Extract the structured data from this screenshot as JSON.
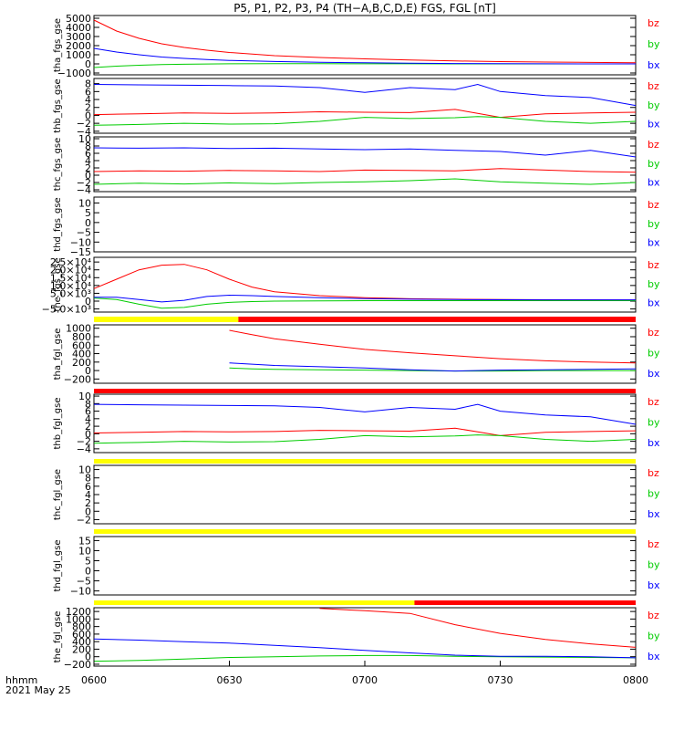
{
  "title": "P5,  P1,  P2,  P3,  P4  (TH−A,B,C,D,E)  FGS,  FGL  [nT]",
  "footer": {
    "unit_label": "hhmm",
    "date_label": "2021 May 25"
  },
  "colors": {
    "bz": "#ff0000",
    "by": "#00cc00",
    "bx": "#0000ff",
    "flag_yellow": "#ffff00",
    "flag_red": "#ff0000",
    "frame": "#000000"
  },
  "chart_data": [
    {
      "type": "line",
      "ylabel": "tha_fgs_gse",
      "yticks": [
        "5000",
        "4000",
        "3000",
        "2000",
        "1000",
        "0",
        "−1000"
      ],
      "ylim": [
        -1200,
        5300
      ],
      "legend": [
        "bz",
        "by",
        "bx"
      ],
      "x": [
        "0600",
        "0605",
        "0610",
        "0615",
        "0620",
        "0625",
        "0630",
        "0640",
        "0650",
        "0700",
        "0710",
        "0720",
        "0730",
        "0740",
        "0750",
        "0800"
      ],
      "series": [
        {
          "name": "bz",
          "values": [
            4800,
            3600,
            2800,
            2200,
            1800,
            1500,
            1250,
            900,
            700,
            550,
            420,
            320,
            250,
            200,
            160,
            120
          ]
        },
        {
          "name": "by",
          "values": [
            -400,
            -250,
            -150,
            -80,
            -40,
            -10,
            10,
            20,
            20,
            10,
            10,
            0,
            0,
            0,
            0,
            0
          ]
        },
        {
          "name": "bx",
          "values": [
            1700,
            1300,
            1000,
            750,
            600,
            480,
            380,
            260,
            180,
            120,
            80,
            40,
            20,
            10,
            0,
            0
          ]
        }
      ]
    },
    {
      "type": "line",
      "ylabel": "thb_fgs_gse",
      "yticks": [
        "8",
        "6",
        "4",
        "2",
        "0",
        "−2",
        "−4"
      ],
      "ylim": [
        -4.5,
        9.3
      ],
      "legend": [
        "bz",
        "by",
        "bx"
      ],
      "x": [
        "0600",
        "0610",
        "0620",
        "0630",
        "0640",
        "0650",
        "0700",
        "0710",
        "0720",
        "0725",
        "0730",
        "0740",
        "0750",
        "0800"
      ],
      "series": [
        {
          "name": "bz",
          "values": [
            0.2,
            0.4,
            0.6,
            0.5,
            0.6,
            0.9,
            0.8,
            0.7,
            1.5,
            0.5,
            -0.5,
            0.4,
            0.6,
            0.8
          ]
        },
        {
          "name": "by",
          "values": [
            -2.5,
            -2.3,
            -2.0,
            -2.2,
            -2.1,
            -1.5,
            -0.5,
            -0.8,
            -0.6,
            -0.3,
            -0.5,
            -1.5,
            -2.0,
            -1.5
          ]
        },
        {
          "name": "bx",
          "values": [
            7.8,
            7.7,
            7.6,
            7.5,
            7.4,
            7.0,
            5.8,
            7.0,
            6.5,
            7.8,
            6.0,
            5.0,
            4.5,
            2.5
          ]
        }
      ]
    },
    {
      "type": "line",
      "ylabel": "thc_fgs_gse",
      "yticks": [
        "10",
        "8",
        "6",
        "4",
        "2",
        "0",
        "−2",
        "−4"
      ],
      "ylim": [
        -4.5,
        10.5
      ],
      "legend": [
        "bz",
        "by",
        "bx"
      ],
      "x": [
        "0600",
        "0610",
        "0620",
        "0630",
        "0640",
        "0650",
        "0700",
        "0710",
        "0720",
        "0730",
        "0740",
        "0750",
        "0800"
      ],
      "series": [
        {
          "name": "bz",
          "values": [
            1.0,
            1.2,
            1.1,
            1.3,
            1.2,
            1.0,
            1.4,
            1.3,
            1.2,
            1.8,
            1.4,
            1.0,
            0.8
          ]
        },
        {
          "name": "by",
          "values": [
            -2.5,
            -2.2,
            -2.4,
            -2.1,
            -2.3,
            -2.0,
            -1.8,
            -1.5,
            -1.0,
            -1.8,
            -2.2,
            -2.5,
            -2.0
          ]
        },
        {
          "name": "bx",
          "values": [
            7.5,
            7.4,
            7.5,
            7.3,
            7.4,
            7.2,
            7.0,
            7.2,
            6.8,
            6.5,
            5.5,
            6.8,
            5.0
          ]
        }
      ]
    },
    {
      "type": "line",
      "ylabel": "thd_fgs_gse",
      "yticks": [
        "10",
        "5",
        "0",
        "−5",
        "−10",
        "−15"
      ],
      "ylim": [
        -15,
        13
      ],
      "legend": [
        "bz",
        "by",
        "bx"
      ],
      "series": []
    },
    {
      "type": "line",
      "ylabel": "the_fgs_gse",
      "yticks": [
        "2.5×10⁴",
        "2.0×10⁴",
        "1.5×10⁴",
        "1.0×10⁴",
        "5.0×10³",
        "0",
        "−5.0×10³"
      ],
      "ylim": [
        -7000,
        28000
      ],
      "legend": [
        "bz",
        "by",
        "bx"
      ],
      "x": [
        "0600",
        "0605",
        "0610",
        "0615",
        "0620",
        "0625",
        "0630",
        "0635",
        "0640",
        "0650",
        "0700",
        "0710",
        "0720",
        "0730",
        "0740",
        "0750",
        "0800"
      ],
      "series": [
        {
          "name": "bz",
          "values": [
            8000,
            14000,
            20000,
            23000,
            23500,
            20000,
            14000,
            9000,
            6000,
            3500,
            2200,
            1500,
            1200,
            1000,
            900,
            800,
            700
          ]
        },
        {
          "name": "by",
          "values": [
            2000,
            1000,
            -2000,
            -4500,
            -4000,
            -2000,
            -800,
            -300,
            0,
            200,
            300,
            300,
            300,
            300,
            300,
            300,
            300
          ]
        },
        {
          "name": "bx",
          "values": [
            2500,
            2500,
            1000,
            -500,
            500,
            3000,
            3800,
            3500,
            3000,
            2200,
            1600,
            1200,
            1000,
            900,
            800,
            800,
            800
          ]
        }
      ]
    },
    {
      "type": "line",
      "ylabel": "tha_fgl_gse",
      "yticks": [
        "1000",
        "800",
        "600",
        "400",
        "200",
        "0",
        "−200"
      ],
      "ylim": [
        -300,
        1080
      ],
      "legend": [
        "bz",
        "by",
        "bx"
      ],
      "x": [
        "0630",
        "0635",
        "0640",
        "0650",
        "0700",
        "0710",
        "0720",
        "0730",
        "0740",
        "0750",
        "0800"
      ],
      "series": [
        {
          "name": "bz",
          "values": [
            950,
            850,
            750,
            620,
            500,
            420,
            350,
            280,
            230,
            200,
            180
          ]
        },
        {
          "name": "by",
          "values": [
            60,
            40,
            30,
            20,
            10,
            0,
            -10,
            -10,
            0,
            0,
            0
          ]
        },
        {
          "name": "bx",
          "values": [
            180,
            150,
            120,
            90,
            60,
            20,
            -10,
            10,
            20,
            30,
            40
          ]
        }
      ]
    },
    {
      "type": "line",
      "ylabel": "thb_fgl_gse",
      "yticks": [
        "10",
        "8",
        "6",
        "4",
        "2",
        "0",
        "−2",
        "−4"
      ],
      "ylim": [
        -5,
        10.5
      ],
      "legend": [
        "bz",
        "by",
        "bx"
      ],
      "x": [
        "0600",
        "0610",
        "0620",
        "0630",
        "0640",
        "0650",
        "0700",
        "0710",
        "0720",
        "0725",
        "0730",
        "0740",
        "0750",
        "0800"
      ],
      "series": [
        {
          "name": "bz",
          "values": [
            0.2,
            0.4,
            0.6,
            0.5,
            0.6,
            0.9,
            0.8,
            0.7,
            1.5,
            0.5,
            -0.5,
            0.4,
            0.6,
            0.8
          ]
        },
        {
          "name": "by",
          "values": [
            -2.5,
            -2.3,
            -2.0,
            -2.2,
            -2.1,
            -1.5,
            -0.5,
            -0.8,
            -0.6,
            -0.3,
            -0.5,
            -1.5,
            -2.0,
            -1.5
          ]
        },
        {
          "name": "bx",
          "values": [
            7.8,
            7.7,
            7.6,
            7.5,
            7.4,
            7.0,
            5.8,
            7.0,
            6.5,
            7.8,
            6.0,
            5.0,
            4.5,
            2.5
          ]
        }
      ]
    },
    {
      "type": "line",
      "ylabel": "thc_fgl_gse",
      "yticks": [
        "10",
        "8",
        "6",
        "4",
        "2",
        "0",
        "−2"
      ],
      "ylim": [
        -3,
        11
      ],
      "legend": [
        "bz",
        "by",
        "bx"
      ],
      "series": []
    },
    {
      "type": "line",
      "ylabel": "thd_fgl_gse",
      "yticks": [
        "15",
        "10",
        "5",
        "0",
        "−5",
        "−10"
      ],
      "ylim": [
        -12,
        17
      ],
      "legend": [
        "bz",
        "by",
        "bx"
      ],
      "series": []
    },
    {
      "type": "line",
      "ylabel": "the_fgl_gse",
      "yticks": [
        "1200",
        "1000",
        "800",
        "600",
        "400",
        "200",
        "0",
        "−200"
      ],
      "ylim": [
        -250,
        1300
      ],
      "legend": [
        "bz",
        "by",
        "bx"
      ],
      "x": [
        "0600",
        "0610",
        "0620",
        "0630",
        "0640",
        "0650",
        "0700",
        "0710",
        "0720",
        "0730",
        "0740",
        "0750",
        "0800"
      ],
      "series": [
        {
          "name": "bz",
          "values": [
            null,
            null,
            null,
            null,
            null,
            1280,
            1220,
            1150,
            850,
            620,
            460,
            340,
            250
          ]
        },
        {
          "name": "by",
          "values": [
            -120,
            -100,
            -60,
            -20,
            0,
            20,
            30,
            30,
            10,
            0,
            -10,
            -20,
            -30
          ]
        },
        {
          "name": "bx",
          "values": [
            470,
            440,
            400,
            360,
            300,
            240,
            170,
            100,
            40,
            10,
            10,
            0,
            -30
          ]
        }
      ]
    }
  ],
  "flag_bars": [
    {
      "segments": [
        {
          "from": "0600",
          "to": "0632",
          "color": "yellow"
        },
        {
          "from": "0632",
          "to": "0800",
          "color": "red"
        }
      ]
    },
    {
      "segments": [
        {
          "from": "0600",
          "to": "0800",
          "color": "red"
        }
      ]
    },
    {
      "segments": [
        {
          "from": "0600",
          "to": "0800",
          "color": "yellow"
        }
      ]
    },
    {
      "segments": [
        {
          "from": "0600",
          "to": "0800",
          "color": "yellow"
        }
      ]
    },
    {
      "segments": [
        {
          "from": "0600",
          "to": "0711",
          "color": "yellow"
        },
        {
          "from": "0711",
          "to": "0800",
          "color": "red"
        }
      ]
    }
  ],
  "xaxis": {
    "ticks": [
      "0600",
      "0630",
      "0700",
      "0730",
      "0800"
    ]
  }
}
